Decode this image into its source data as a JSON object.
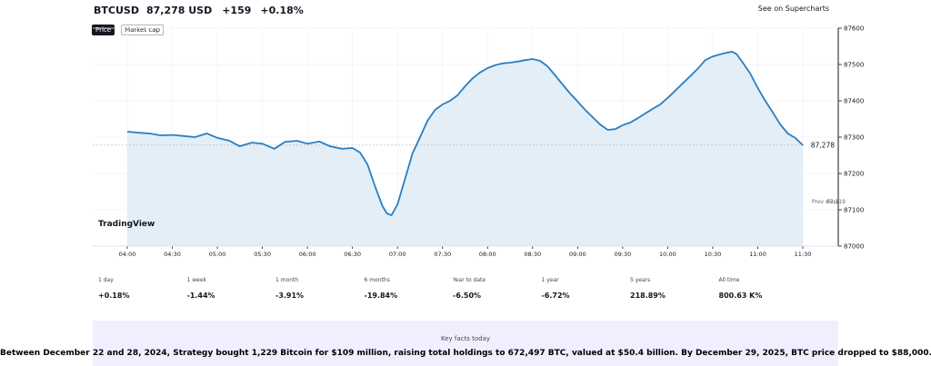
{
  "header": {
    "symbol": "BTCUSD",
    "price": "87,278 USD",
    "change": "+159",
    "change_pct": "+0.18%"
  },
  "see_on_supercharts": "See on Supercharts",
  "toggle": {
    "price_label": "Price",
    "marketcap_label": "Market cap"
  },
  "chart_data": {
    "type": "area",
    "title": "BTCUSD",
    "x": [
      "04:00",
      "04:30",
      "05:00",
      "05:30",
      "06:00",
      "06:30",
      "07:00",
      "07:30",
      "08:00",
      "08:30",
      "09:00",
      "09:30",
      "10:00",
      "10:30",
      "11:00",
      "11:30"
    ],
    "xlabel": "",
    "ylabel": "",
    "ylim": [
      87000,
      87600
    ],
    "yticks": [
      87000,
      87100,
      87200,
      87300,
      87400,
      87500,
      87600
    ],
    "xlim": [
      0,
      450
    ],
    "series": [
      {
        "name": "BTCUSD",
        "points": [
          [
            0,
            87315
          ],
          [
            8,
            87312
          ],
          [
            15,
            87310
          ],
          [
            22,
            87305
          ],
          [
            30,
            87306
          ],
          [
            38,
            87303
          ],
          [
            45,
            87300
          ],
          [
            53,
            87310
          ],
          [
            60,
            87298
          ],
          [
            68,
            87290
          ],
          [
            75,
            87275
          ],
          [
            83,
            87285
          ],
          [
            90,
            87282
          ],
          [
            98,
            87268
          ],
          [
            105,
            87287
          ],
          [
            113,
            87290
          ],
          [
            120,
            87282
          ],
          [
            128,
            87288
          ],
          [
            135,
            87275
          ],
          [
            143,
            87268
          ],
          [
            150,
            87270
          ],
          [
            155,
            87258
          ],
          [
            160,
            87225
          ],
          [
            165,
            87165
          ],
          [
            170,
            87110
          ],
          [
            173,
            87090
          ],
          [
            176,
            87085
          ],
          [
            180,
            87115
          ],
          [
            185,
            87185
          ],
          [
            190,
            87255
          ],
          [
            195,
            87300
          ],
          [
            200,
            87345
          ],
          [
            205,
            87375
          ],
          [
            210,
            87390
          ],
          [
            215,
            87400
          ],
          [
            220,
            87415
          ],
          [
            225,
            87440
          ],
          [
            230,
            87462
          ],
          [
            235,
            87478
          ],
          [
            240,
            87490
          ],
          [
            245,
            87498
          ],
          [
            250,
            87503
          ],
          [
            255,
            87505
          ],
          [
            260,
            87508
          ],
          [
            265,
            87512
          ],
          [
            270,
            87515
          ],
          [
            275,
            87510
          ],
          [
            280,
            87495
          ],
          [
            285,
            87470
          ],
          [
            290,
            87445
          ],
          [
            295,
            87420
          ],
          [
            300,
            87398
          ],
          [
            305,
            87375
          ],
          [
            310,
            87355
          ],
          [
            315,
            87335
          ],
          [
            320,
            87320
          ],
          [
            325,
            87322
          ],
          [
            330,
            87333
          ],
          [
            335,
            87340
          ],
          [
            340,
            87352
          ],
          [
            345,
            87365
          ],
          [
            350,
            87378
          ],
          [
            355,
            87390
          ],
          [
            360,
            87408
          ],
          [
            365,
            87428
          ],
          [
            370,
            87448
          ],
          [
            375,
            87468
          ],
          [
            380,
            87488
          ],
          [
            385,
            87512
          ],
          [
            390,
            87522
          ],
          [
            395,
            87528
          ],
          [
            400,
            87533
          ],
          [
            403,
            87535
          ],
          [
            406,
            87528
          ],
          [
            410,
            87505
          ],
          [
            415,
            87475
          ],
          [
            420,
            87435
          ],
          [
            425,
            87400
          ],
          [
            430,
            87368
          ],
          [
            435,
            87335
          ],
          [
            440,
            87310
          ],
          [
            445,
            87298
          ],
          [
            450,
            87278
          ]
        ]
      }
    ],
    "last_value": "87,278",
    "prev_close": {
      "label": "Prev close",
      "value": "87,119"
    },
    "watermark": "TradingView"
  },
  "stats": [
    {
      "label": "1 day",
      "value": "+0.18%"
    },
    {
      "label": "1 week",
      "value": "-1.44%"
    },
    {
      "label": "1 month",
      "value": "-3.91%"
    },
    {
      "label": "6 months",
      "value": "-19.84%"
    },
    {
      "label": "Year to date",
      "value": "-6.50%"
    },
    {
      "label": "1 year",
      "value": "-6.72%"
    },
    {
      "label": "5 years",
      "value": "218.89%"
    },
    {
      "label": "All time",
      "value": "800.63 K%"
    }
  ],
  "key_facts": {
    "title": "Key facts today"
  },
  "caption": "Between December 22 and 28, 2024, Strategy bought 1,229 Bitcoin for $109 million, raising total holdings to 672,497 BTC, valued at $50.4 billion. By December 29, 2025, BTC price dropped to $88,000.",
  "colors": {
    "line": "#2a7fc1",
    "fill": "#e3eef7",
    "text": "#131722",
    "panel": "#f1efff"
  }
}
